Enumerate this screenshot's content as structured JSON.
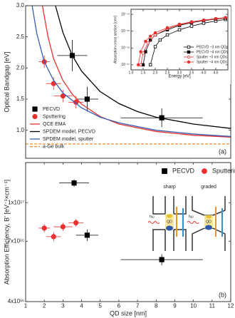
{
  "chart_data": [
    {
      "type": "scatter",
      "ylabel": "Optical Bandgap [eV]",
      "panel_label": "(a)",
      "xlim": [
        1,
        12
      ],
      "ylim": [
        0.55,
        3.0
      ],
      "yticks": [
        {
          "value": 1.0,
          "label": "1.0"
        },
        1.5,
        {
          "value": 2.0,
          "label": "2.0"
        },
        2.5,
        {
          "value": 3.0,
          "label": "3.0"
        }
      ],
      "legend": "lower left",
      "series": [
        {
          "name": "PECVD",
          "color": "#000000",
          "marker": "square",
          "filled": true,
          "line": false,
          "x": [
            3.5,
            4.3,
            8.3
          ],
          "values": [
            2.2,
            1.5,
            1.2
          ],
          "xerr": [
            0.8,
            0.6,
            2.2
          ],
          "yerr": [
            0.25,
            0.2,
            0.15
          ]
        },
        {
          "name": "Sputtering",
          "color": "#e8312f",
          "marker": "circle",
          "filled": true,
          "line": false,
          "x": [
            2.0,
            2.5,
            3.0,
            3.7
          ],
          "values": [
            2.1,
            1.75,
            1.55,
            1.45
          ],
          "xerr": [
            0.3,
            0.4,
            0.5,
            0.4
          ],
          "yerr": [
            0.1,
            0.1,
            0.1,
            0.1
          ]
        },
        {
          "name": "QCE EMA",
          "color": "#e8312f",
          "marker": "none",
          "line": true,
          "x": [
            1.9,
            2.2,
            2.5,
            3,
            3.5,
            4,
            5,
            6,
            8,
            10,
            12
          ],
          "values": [
            3.0,
            2.5,
            2.15,
            1.8,
            1.58,
            1.42,
            1.22,
            1.1,
            0.98,
            0.92,
            0.89
          ]
        },
        {
          "name": "SPDEM model, PECVD",
          "color": "#000000",
          "marker": "none",
          "line": true,
          "x": [
            2.6,
            3,
            3.5,
            4,
            5,
            6,
            7,
            8,
            10,
            12
          ],
          "values": [
            3.0,
            2.57,
            2.2,
            1.95,
            1.62,
            1.43,
            1.3,
            1.21,
            1.1,
            1.03
          ]
        },
        {
          "name": "SPDEM model, sputter",
          "color": "#3a5fb5",
          "marker": "none",
          "line": true,
          "x": [
            1.35,
            1.6,
            2,
            2.5,
            3,
            4,
            5,
            6,
            8,
            10,
            12
          ],
          "values": [
            3.0,
            2.55,
            2.1,
            1.8,
            1.6,
            1.36,
            1.21,
            1.12,
            1.0,
            0.94,
            0.9
          ]
        },
        {
          "name": "a-Ge bulk",
          "color": "#f0922c",
          "marker": "none",
          "line": true,
          "dash": true,
          "x": [
            1,
            12
          ],
          "values": [
            0.78,
            0.78
          ]
        }
      ]
    },
    {
      "type": "scatter",
      "xlabel": "Energy [eV]",
      "ylabel": "Absorption cross section [cm²]",
      "ylog": true,
      "xlim": [
        1.0,
        5.0
      ],
      "ylim": [
        5e-18,
        2e-14
      ],
      "xticks": [
        {
          "value": 1.0,
          "label": "1.0"
        },
        1.5,
        {
          "value": 2.0,
          "label": "2.0"
        },
        2.5,
        {
          "value": 3.0,
          "label": "3.0"
        },
        3.5,
        {
          "value": 4.0,
          "label": "4.0"
        },
        4.5
      ],
      "yticks": [
        {
          "value": 1e-17,
          "label": "10⁻¹⁷"
        },
        {
          "value": 1e-16,
          "label": "10⁻¹⁶"
        },
        {
          "value": 1e-15,
          "label": "10⁻¹⁵"
        },
        {
          "value": 1e-14,
          "label": "10⁻¹⁴"
        }
      ],
      "legend": "lower right",
      "series": [
        {
          "name": "PECVD ~3 nm QDs",
          "color": "#000000",
          "marker": "square",
          "filled": false,
          "line": true,
          "x": [
            1.8,
            2,
            2.2,
            2.5,
            3,
            3.5,
            4,
            4.5,
            4.9
          ],
          "values": [
            1e-17,
            1.2e-16,
            3e-16,
            6e-16,
            1.2e-15,
            2e-15,
            3e-15,
            4e-15,
            5e-15
          ]
        },
        {
          "name": "PECVD ~4 nm QDs",
          "color": "#000000",
          "marker": "square",
          "filled": true,
          "line": true,
          "x": [
            1.5,
            1.6,
            1.8,
            2,
            2.5,
            3,
            3.5,
            4,
            4.5,
            4.9
          ],
          "values": [
            1e-17,
            6e-17,
            3e-16,
            6e-16,
            1.2e-15,
            2.2e-15,
            3.2e-15,
            4.2e-15,
            5.2e-15,
            6e-15
          ]
        },
        {
          "name": "Sputter ~3 nm QDs",
          "color": "#e8312f",
          "marker": "circle",
          "filled": false,
          "line": true,
          "x": [
            1.4,
            1.5,
            1.7,
            2,
            2.5,
            3,
            3.5,
            4,
            4.5,
            4.9
          ],
          "values": [
            1e-17,
            5e-17,
            2e-16,
            6e-16,
            1.4e-15,
            2.4e-15,
            3.4e-15,
            4.4e-15,
            5.4e-15,
            6.2e-15
          ]
        },
        {
          "name": "Sputter ~4 nm QDs",
          "color": "#e8312f",
          "marker": "circle",
          "filled": true,
          "line": true,
          "x": [
            1.3,
            1.4,
            1.6,
            1.8,
            2,
            2.5,
            3,
            3.5,
            4,
            4.5,
            4.9
          ],
          "values": [
            1e-17,
            6e-17,
            2.5e-16,
            5e-16,
            8e-16,
            1.6e-15,
            2.6e-15,
            3.6e-15,
            4.6e-15,
            5.6e-15,
            6.4e-15
          ]
        }
      ]
    },
    {
      "type": "scatter",
      "xlabel": "QD size [nm]",
      "ylabel": "Absorption Efficiency, B' [eV⁻¹×cm⁻¹]",
      "panel_label": "(b)",
      "ylog": true,
      "xlim": [
        1,
        12
      ],
      "ylim": [
        4e+16,
        1.45e+17
      ],
      "xticks": [
        1,
        2,
        3,
        4,
        5,
        6,
        7,
        8,
        9,
        10,
        11,
        12
      ],
      "yticks": [
        {
          "value": 4e+16,
          "label": "4x10¹⁶"
        },
        {
          "value": 7e+16,
          "label": "7x10¹⁶"
        },
        {
          "value": 1e+17,
          "label": "1x10¹⁷"
        }
      ],
      "legend": "upper right",
      "series": [
        {
          "name": "PECVD",
          "color": "#000000",
          "marker": "square",
          "filled": true,
          "line": false,
          "x": [
            3.6,
            4.3,
            8.3
          ],
          "values": [
            1.2e+17,
            7.4e+16,
            5.9e+16
          ],
          "xerr": [
            0.8,
            0.6,
            2.2
          ],
          "yerr": [
            4000000000000000.0,
            4000000000000000.0,
            3000000000000000.0
          ]
        },
        {
          "name": "Sputtering",
          "color": "#e8312f",
          "marker": "circle",
          "filled": true,
          "line": false,
          "x": [
            2.0,
            2.5,
            3.0,
            3.7
          ],
          "values": [
            7.9e+16,
            7.3e+16,
            8e+16,
            8.3e+16
          ],
          "xerr": [
            0.3,
            0.4,
            0.5,
            0.4
          ],
          "yerr": [
            3000000000000000.0,
            3000000000000000.0,
            3000000000000000.0,
            3000000000000000.0
          ]
        }
      ]
    }
  ],
  "schematics": [
    {
      "title": "sharp",
      "dot": "QD",
      "photon": "ħω"
    },
    {
      "title": "graded",
      "dot": "QD",
      "photon": "ħω"
    }
  ]
}
